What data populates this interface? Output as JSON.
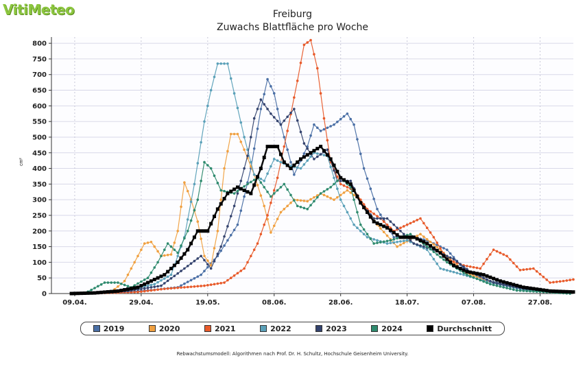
{
  "brand": {
    "logo_text": "VitiMeteo"
  },
  "chart_data": {
    "type": "line",
    "title": "Freiburg",
    "subtitle": "Zuwachs Blattfläche pro Woche",
    "ylabel": "cm²",
    "xlabel": "",
    "ylim": [
      0,
      820
    ],
    "yticks": [
      0,
      50,
      100,
      150,
      200,
      250,
      300,
      350,
      400,
      450,
      500,
      550,
      600,
      650,
      700,
      750,
      800
    ],
    "xticks": [
      "09.04.",
      "29.04.",
      "19.05.",
      "08.06.",
      "28.06.",
      "18.07.",
      "07.08.",
      "27.08."
    ],
    "grid": true,
    "legend_position": "bottom",
    "series": [
      {
        "name": "2019",
        "color": "#4a6fa5",
        "points": [
          [
            "2024-04-12",
            0
          ],
          [
            "2024-04-25",
            5
          ],
          [
            "2024-05-03",
            12
          ],
          [
            "2024-05-10",
            20
          ],
          [
            "2024-05-17",
            60
          ],
          [
            "2024-05-22",
            120
          ],
          [
            "2024-05-28",
            220
          ],
          [
            "2024-06-01",
            400
          ],
          [
            "2024-06-04",
            590
          ],
          [
            "2024-06-06",
            685
          ],
          [
            "2024-06-08",
            640
          ],
          [
            "2024-06-10",
            540
          ],
          [
            "2024-06-14",
            380
          ],
          [
            "2024-06-18",
            470
          ],
          [
            "2024-06-20",
            540
          ],
          [
            "2024-06-22",
            520
          ],
          [
            "2024-06-26",
            540
          ],
          [
            "2024-06-30",
            575
          ],
          [
            "2024-07-02",
            540
          ],
          [
            "2024-07-05",
            400
          ],
          [
            "2024-07-09",
            270
          ],
          [
            "2024-07-14",
            180
          ],
          [
            "2024-07-20",
            180
          ],
          [
            "2024-07-24",
            170
          ],
          [
            "2024-07-30",
            140
          ],
          [
            "2024-08-04",
            80
          ],
          [
            "2024-08-10",
            45
          ],
          [
            "2024-08-18",
            25
          ],
          [
            "2024-08-26",
            10
          ],
          [
            "2024-09-05",
            0
          ]
        ]
      },
      {
        "name": "2020",
        "color": "#f0a040",
        "points": [
          [
            "2024-04-12",
            0
          ],
          [
            "2024-04-20",
            5
          ],
          [
            "2024-04-24",
            40
          ],
          [
            "2024-04-27",
            100
          ],
          [
            "2024-04-30",
            160
          ],
          [
            "2024-05-02",
            165
          ],
          [
            "2024-05-05",
            120
          ],
          [
            "2024-05-08",
            125
          ],
          [
            "2024-05-10",
            200
          ],
          [
            "2024-05-12",
            355
          ],
          [
            "2024-05-14",
            300
          ],
          [
            "2024-05-16",
            230
          ],
          [
            "2024-05-18",
            120
          ],
          [
            "2024-05-20",
            90
          ],
          [
            "2024-05-22",
            200
          ],
          [
            "2024-05-24",
            400
          ],
          [
            "2024-05-26",
            510
          ],
          [
            "2024-05-28",
            510
          ],
          [
            "2024-05-30",
            460
          ],
          [
            "2024-06-02",
            380
          ],
          [
            "2024-06-05",
            280
          ],
          [
            "2024-06-07",
            195
          ],
          [
            "2024-06-10",
            260
          ],
          [
            "2024-06-14",
            300
          ],
          [
            "2024-06-18",
            295
          ],
          [
            "2024-06-22",
            320
          ],
          [
            "2024-06-26",
            300
          ],
          [
            "2024-06-30",
            330
          ],
          [
            "2024-07-04",
            300
          ],
          [
            "2024-07-09",
            220
          ],
          [
            "2024-07-15",
            150
          ],
          [
            "2024-07-22",
            190
          ],
          [
            "2024-07-28",
            140
          ],
          [
            "2024-08-04",
            70
          ],
          [
            "2024-08-11",
            40
          ],
          [
            "2024-08-19",
            20
          ],
          [
            "2024-08-27",
            8
          ],
          [
            "2024-09-05",
            0
          ]
        ]
      },
      {
        "name": "2021",
        "color": "#e85a2a",
        "points": [
          [
            "2024-04-12",
            0
          ],
          [
            "2024-04-28",
            5
          ],
          [
            "2024-05-06",
            15
          ],
          [
            "2024-05-12",
            20
          ],
          [
            "2024-05-18",
            25
          ],
          [
            "2024-05-24",
            35
          ],
          [
            "2024-05-30",
            80
          ],
          [
            "2024-06-03",
            160
          ],
          [
            "2024-06-06",
            250
          ],
          [
            "2024-06-09",
            370
          ],
          [
            "2024-06-12",
            520
          ],
          [
            "2024-06-15",
            680
          ],
          [
            "2024-06-17",
            795
          ],
          [
            "2024-06-19",
            810
          ],
          [
            "2024-06-21",
            720
          ],
          [
            "2024-06-23",
            560
          ],
          [
            "2024-06-25",
            420
          ],
          [
            "2024-06-28",
            350
          ],
          [
            "2024-07-02",
            330
          ],
          [
            "2024-07-06",
            270
          ],
          [
            "2024-07-10",
            240
          ],
          [
            "2024-07-14",
            200
          ],
          [
            "2024-07-18",
            220
          ],
          [
            "2024-07-22",
            240
          ],
          [
            "2024-07-26",
            180
          ],
          [
            "2024-07-30",
            110
          ],
          [
            "2024-08-04",
            90
          ],
          [
            "2024-08-09",
            80
          ],
          [
            "2024-08-13",
            140
          ],
          [
            "2024-08-17",
            120
          ],
          [
            "2024-08-21",
            75
          ],
          [
            "2024-08-25",
            80
          ],
          [
            "2024-08-30",
            35
          ],
          [
            "2024-09-03",
            40
          ],
          [
            "2024-09-06",
            45
          ]
        ]
      },
      {
        "name": "2022",
        "color": "#5aa0b8",
        "points": [
          [
            "2024-04-12",
            0
          ],
          [
            "2024-04-25",
            10
          ],
          [
            "2024-05-03",
            30
          ],
          [
            "2024-05-08",
            60
          ],
          [
            "2024-05-12",
            180
          ],
          [
            "2024-05-15",
            350
          ],
          [
            "2024-05-18",
            550
          ],
          [
            "2024-05-20",
            650
          ],
          [
            "2024-05-22",
            735
          ],
          [
            "2024-05-25",
            735
          ],
          [
            "2024-05-27",
            640
          ],
          [
            "2024-05-30",
            500
          ],
          [
            "2024-06-02",
            380
          ],
          [
            "2024-06-05",
            360
          ],
          [
            "2024-06-08",
            430
          ],
          [
            "2024-06-12",
            410
          ],
          [
            "2024-06-16",
            400
          ],
          [
            "2024-06-20",
            450
          ],
          [
            "2024-06-24",
            440
          ],
          [
            "2024-06-28",
            300
          ],
          [
            "2024-07-02",
            220
          ],
          [
            "2024-07-06",
            180
          ],
          [
            "2024-07-12",
            160
          ],
          [
            "2024-07-18",
            170
          ],
          [
            "2024-07-24",
            140
          ],
          [
            "2024-07-28",
            80
          ],
          [
            "2024-08-04",
            60
          ],
          [
            "2024-08-12",
            35
          ],
          [
            "2024-08-22",
            12
          ],
          [
            "2024-09-05",
            0
          ]
        ]
      },
      {
        "name": "2023",
        "color": "#34436e",
        "points": [
          [
            "2024-04-12",
            0
          ],
          [
            "2024-04-25",
            8
          ],
          [
            "2024-05-05",
            25
          ],
          [
            "2024-05-12",
            80
          ],
          [
            "2024-05-17",
            120
          ],
          [
            "2024-05-20",
            80
          ],
          [
            "2024-05-23",
            150
          ],
          [
            "2024-05-27",
            280
          ],
          [
            "2024-05-31",
            440
          ],
          [
            "2024-06-02",
            560
          ],
          [
            "2024-06-04",
            620
          ],
          [
            "2024-06-07",
            575
          ],
          [
            "2024-06-10",
            540
          ],
          [
            "2024-06-14",
            590
          ],
          [
            "2024-06-17",
            480
          ],
          [
            "2024-06-20",
            430
          ],
          [
            "2024-06-24",
            460
          ],
          [
            "2024-06-27",
            360
          ],
          [
            "2024-07-01",
            360
          ],
          [
            "2024-07-04",
            290
          ],
          [
            "2024-07-08",
            240
          ],
          [
            "2024-07-12",
            240
          ],
          [
            "2024-07-16",
            200
          ],
          [
            "2024-07-20",
            160
          ],
          [
            "2024-07-26",
            140
          ],
          [
            "2024-08-01",
            110
          ],
          [
            "2024-08-06",
            70
          ],
          [
            "2024-08-13",
            35
          ],
          [
            "2024-08-22",
            15
          ],
          [
            "2024-09-05",
            2
          ]
        ]
      },
      {
        "name": "2024",
        "color": "#2e8a6e",
        "points": [
          [
            "2024-04-12",
            0
          ],
          [
            "2024-04-18",
            35
          ],
          [
            "2024-04-22",
            35
          ],
          [
            "2024-04-26",
            20
          ],
          [
            "2024-05-01",
            50
          ],
          [
            "2024-05-04",
            100
          ],
          [
            "2024-05-07",
            160
          ],
          [
            "2024-05-10",
            130
          ],
          [
            "2024-05-13",
            200
          ],
          [
            "2024-05-16",
            300
          ],
          [
            "2024-05-18",
            420
          ],
          [
            "2024-05-20",
            400
          ],
          [
            "2024-05-23",
            330
          ],
          [
            "2024-05-27",
            320
          ],
          [
            "2024-05-31",
            350
          ],
          [
            "2024-06-03",
            370
          ],
          [
            "2024-06-07",
            310
          ],
          [
            "2024-06-11",
            350
          ],
          [
            "2024-06-15",
            280
          ],
          [
            "2024-06-18",
            270
          ],
          [
            "2024-06-22",
            320
          ],
          [
            "2024-06-25",
            340
          ],
          [
            "2024-06-28",
            370
          ],
          [
            "2024-07-01",
            340
          ],
          [
            "2024-07-04",
            220
          ],
          [
            "2024-07-08",
            160
          ],
          [
            "2024-07-13",
            170
          ],
          [
            "2024-07-19",
            190
          ],
          [
            "2024-07-24",
            150
          ],
          [
            "2024-07-30",
            100
          ],
          [
            "2024-08-05",
            60
          ],
          [
            "2024-08-12",
            30
          ],
          [
            "2024-08-20",
            10
          ],
          [
            "2024-09-05",
            0
          ]
        ]
      },
      {
        "name": "Durchschnitt",
        "color": "#000000",
        "points": [
          [
            "2024-04-08",
            0
          ],
          [
            "2024-04-15",
            2
          ],
          [
            "2024-04-22",
            8
          ],
          [
            "2024-04-28",
            20
          ],
          [
            "2024-05-02",
            40
          ],
          [
            "2024-05-06",
            60
          ],
          [
            "2024-05-10",
            100
          ],
          [
            "2024-05-13",
            140
          ],
          [
            "2024-05-16",
            200
          ],
          [
            "2024-05-19",
            200
          ],
          [
            "2024-05-22",
            270
          ],
          [
            "2024-05-25",
            320
          ],
          [
            "2024-05-28",
            340
          ],
          [
            "2024-06-01",
            320
          ],
          [
            "2024-06-04",
            400
          ],
          [
            "2024-06-06",
            470
          ],
          [
            "2024-06-09",
            470
          ],
          [
            "2024-06-11",
            420
          ],
          [
            "2024-06-13",
            400
          ],
          [
            "2024-06-16",
            430
          ],
          [
            "2024-06-19",
            450
          ],
          [
            "2024-06-22",
            470
          ],
          [
            "2024-06-25",
            430
          ],
          [
            "2024-06-28",
            370
          ],
          [
            "2024-07-01",
            350
          ],
          [
            "2024-07-04",
            290
          ],
          [
            "2024-07-08",
            230
          ],
          [
            "2024-07-12",
            210
          ],
          [
            "2024-07-16",
            180
          ],
          [
            "2024-07-20",
            180
          ],
          [
            "2024-07-24",
            160
          ],
          [
            "2024-07-28",
            130
          ],
          [
            "2024-08-01",
            90
          ],
          [
            "2024-08-05",
            70
          ],
          [
            "2024-08-10",
            60
          ],
          [
            "2024-08-15",
            40
          ],
          [
            "2024-08-22",
            20
          ],
          [
            "2024-08-30",
            8
          ],
          [
            "2024-09-06",
            5
          ]
        ]
      }
    ]
  },
  "legend": {
    "items": [
      {
        "label": "2019",
        "color": "#4a6fa5"
      },
      {
        "label": "2020",
        "color": "#f0a040"
      },
      {
        "label": "2021",
        "color": "#e85a2a"
      },
      {
        "label": "2022",
        "color": "#5aa0b8"
      },
      {
        "label": "2023",
        "color": "#34436e"
      },
      {
        "label": "2024",
        "color": "#2e8a6e"
      },
      {
        "label": "Durchschnitt",
        "color": "#000000"
      }
    ]
  },
  "footer": {
    "text": "Rebwachstumsmodell: Algorithmen nach Prof. Dr. H. Schultz, Hochschule Geisenheim University."
  }
}
